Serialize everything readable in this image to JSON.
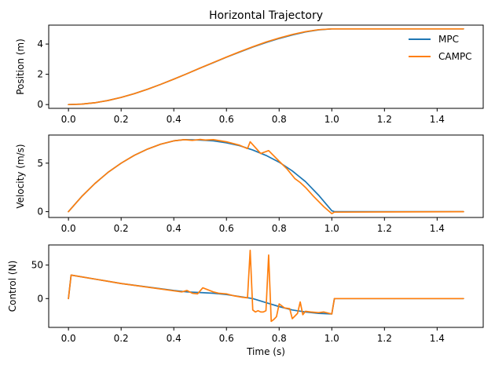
{
  "colors": {
    "MPC": "#1f77b4",
    "CAMPC": "#ff7f0e"
  },
  "chart_data": [
    {
      "type": "line",
      "title": "Horizontal Trajectory",
      "xlabel": "",
      "ylabel": "Position (m)",
      "xlim": [
        -0.075,
        1.575
      ],
      "ylim": [
        -0.25,
        5.25
      ],
      "xticks": [
        "0.0",
        "0.2",
        "0.4",
        "0.6",
        "0.8",
        "1.0",
        "1.2",
        "1.4"
      ],
      "yticks": [
        "0",
        "2",
        "4"
      ],
      "legend": {
        "placement": "top-right",
        "entries": [
          "MPC",
          "CAMPC"
        ]
      },
      "grid": false,
      "series": [
        {
          "name": "MPC",
          "x": [
            0,
            0.05,
            0.1,
            0.15,
            0.2,
            0.25,
            0.3,
            0.35,
            0.4,
            0.45,
            0.5,
            0.55,
            0.6,
            0.65,
            0.7,
            0.75,
            0.8,
            0.85,
            0.9,
            0.95,
            1.0,
            1.5
          ],
          "y": [
            0,
            0.03,
            0.12,
            0.27,
            0.47,
            0.72,
            1.01,
            1.33,
            1.68,
            2.04,
            2.41,
            2.77,
            3.13,
            3.47,
            3.8,
            4.1,
            4.37,
            4.6,
            4.8,
            4.94,
            5.0,
            5.0
          ]
        },
        {
          "name": "CAMPC",
          "x": [
            0,
            0.05,
            0.1,
            0.15,
            0.2,
            0.25,
            0.3,
            0.35,
            0.4,
            0.45,
            0.5,
            0.55,
            0.6,
            0.65,
            0.7,
            0.75,
            0.8,
            0.85,
            0.9,
            0.95,
            1.0,
            1.5
          ],
          "y": [
            0,
            0.03,
            0.12,
            0.27,
            0.47,
            0.72,
            1.01,
            1.33,
            1.68,
            2.04,
            2.41,
            2.78,
            3.14,
            3.49,
            3.82,
            4.13,
            4.4,
            4.63,
            4.82,
            4.95,
            5.0,
            5.0
          ]
        }
      ]
    },
    {
      "type": "line",
      "title": "",
      "xlabel": "",
      "ylabel": "Velocity (m/s)",
      "xlim": [
        -0.075,
        1.575
      ],
      "ylim": [
        -0.6,
        7.9
      ],
      "xticks": [
        "0.0",
        "0.2",
        "0.4",
        "0.6",
        "0.8",
        "1.0",
        "1.2",
        "1.4"
      ],
      "yticks": [
        "0",
        "5"
      ],
      "grid": false,
      "series": [
        {
          "name": "MPC",
          "x": [
            0,
            0.05,
            0.1,
            0.15,
            0.2,
            0.25,
            0.3,
            0.35,
            0.4,
            0.44,
            0.5,
            0.55,
            0.6,
            0.65,
            0.7,
            0.75,
            0.8,
            0.85,
            0.9,
            0.95,
            1.0,
            1.01,
            1.5
          ],
          "y": [
            0,
            1.55,
            2.9,
            4.05,
            5.0,
            5.8,
            6.45,
            6.95,
            7.3,
            7.42,
            7.38,
            7.3,
            7.1,
            6.8,
            6.35,
            5.8,
            5.1,
            4.2,
            3.1,
            1.7,
            0.1,
            0.0,
            0.0
          ]
        },
        {
          "name": "CAMPC",
          "x": [
            0,
            0.05,
            0.1,
            0.15,
            0.2,
            0.25,
            0.3,
            0.35,
            0.4,
            0.44,
            0.47,
            0.5,
            0.52,
            0.55,
            0.6,
            0.65,
            0.68,
            0.69,
            0.73,
            0.76,
            0.8,
            0.83,
            0.86,
            0.88,
            0.9,
            0.93,
            0.97,
            1.0,
            1.01,
            1.5
          ],
          "y": [
            0,
            1.55,
            2.9,
            4.05,
            5.0,
            5.8,
            6.45,
            6.95,
            7.3,
            7.42,
            7.35,
            7.45,
            7.38,
            7.42,
            7.2,
            6.85,
            6.5,
            7.2,
            6.0,
            6.3,
            5.2,
            4.4,
            3.4,
            3.0,
            2.5,
            1.6,
            0.5,
            -0.2,
            -0.05,
            0.0
          ]
        }
      ]
    },
    {
      "type": "line",
      "title": "",
      "xlabel": "Time (s)",
      "ylabel": "Control (N)",
      "xlim": [
        -0.075,
        1.575
      ],
      "ylim": [
        -43,
        80
      ],
      "xticks": [
        "0.0",
        "0.2",
        "0.4",
        "0.6",
        "0.8",
        "1.0",
        "1.2",
        "1.4"
      ],
      "yticks": [
        "0",
        "50"
      ],
      "grid": false,
      "series": [
        {
          "name": "MPC",
          "x": [
            0,
            0.01,
            0.2,
            0.4,
            0.45,
            0.5,
            0.55,
            0.6,
            0.65,
            0.7,
            0.75,
            0.8,
            0.85,
            0.9,
            0.95,
            1.0,
            1.01,
            1.5
          ],
          "y": [
            0,
            35,
            22.5,
            12,
            10,
            9,
            8,
            6,
            3,
            0,
            -6,
            -12,
            -17,
            -20,
            -22,
            -23,
            0,
            0
          ]
        },
        {
          "name": "CAMPC",
          "x": [
            0,
            0.01,
            0.2,
            0.43,
            0.45,
            0.47,
            0.49,
            0.51,
            0.53,
            0.55,
            0.57,
            0.6,
            0.63,
            0.66,
            0.68,
            0.69,
            0.7,
            0.71,
            0.72,
            0.73,
            0.74,
            0.75,
            0.76,
            0.77,
            0.78,
            0.79,
            0.8,
            0.82,
            0.84,
            0.85,
            0.86,
            0.87,
            0.88,
            0.89,
            0.9,
            0.92,
            0.95,
            0.97,
            1.0,
            1.01,
            1.5
          ],
          "y": [
            0,
            35,
            22.5,
            10,
            12,
            8,
            7,
            16,
            13,
            10,
            8,
            7,
            4,
            2,
            1,
            72,
            -17,
            -20,
            -18,
            -20,
            -20,
            -18,
            65,
            -34,
            -31,
            -27,
            -8,
            -14,
            -15,
            -30,
            -26,
            -22,
            -5,
            -24,
            -19,
            -20,
            -21,
            -20,
            -23,
            0,
            0
          ]
        }
      ]
    }
  ]
}
